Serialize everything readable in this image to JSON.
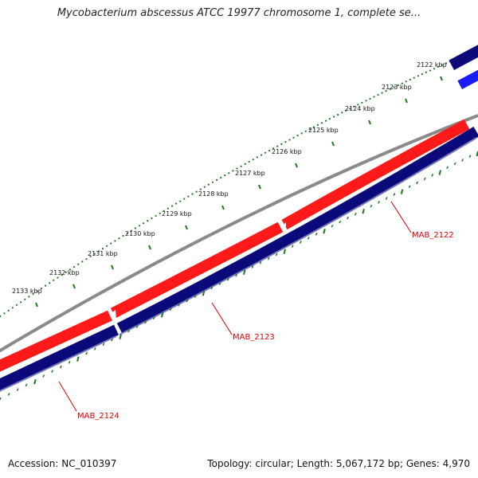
{
  "title": "Mycobacterium abscessus ATCC 19977 chromosome 1, complete se...",
  "accession": "Accession: NC_010397",
  "summary": "Topology: circular; Length: 5,067,172 bp; Genes: 4,970",
  "colors": {
    "ruler": "#1b7a1b",
    "backbone": "#888888",
    "forward_gene": "#ff1a1a",
    "reverse_gene": "#0a0a7a",
    "highlight_gene": "#1a1aff",
    "gene_label": "#dd0000"
  },
  "ruler_labels": [
    "2122 kbp",
    "2123 kbp",
    "2124 kbp",
    "2125 kbp",
    "2126 kbp",
    "2127 kbp",
    "2128 kbp",
    "2129 kbp",
    "2130 kbp",
    "2131 kbp",
    "2132 kbp",
    "2133 kbp"
  ],
  "gene_labels": [
    "MAB_2122",
    "MAB_2123",
    "MAB_2124"
  ]
}
